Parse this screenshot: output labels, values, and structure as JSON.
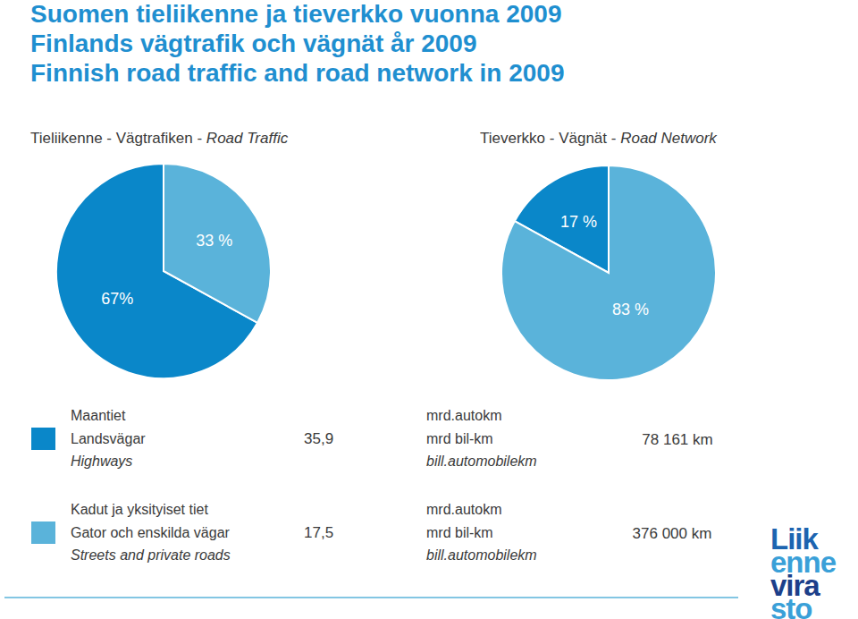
{
  "title": [
    "Suomen tieliikenne ja tieverkko vuonna 2009",
    "Finlands vägtrafik och vägnät år 2009",
    "Finnish road traffic and road network in 2009"
  ],
  "chart_data": [
    {
      "type": "pie",
      "title": "Tieliikenne - Vägtrafiken - Road Traffic",
      "values": [
        67,
        33
      ],
      "value_labels": [
        "67%",
        "33 %"
      ],
      "colors": [
        "#0a87c9",
        "#5ab3da"
      ],
      "data_labels": true
    },
    {
      "type": "pie",
      "title": "Tieverkko - Vägnät - Road Network",
      "values": [
        17,
        83
      ],
      "value_labels": [
        "17 %",
        "83 %"
      ],
      "colors": [
        "#0a87c9",
        "#5ab3da"
      ],
      "data_labels": true
    }
  ],
  "legend": {
    "rows": [
      {
        "names": [
          "Maantiet",
          "Landsvägar",
          "Highways"
        ],
        "traffic": {
          "value": 35.9,
          "label": "35,9"
        },
        "unit": [
          "mrd.autokm",
          "mrd bil-km",
          "bill.automobilekm"
        ],
        "length": {
          "value": 78161,
          "label": "78 161 km"
        }
      },
      {
        "names": [
          "Kadut ja yksityiset tiet",
          "Gator och enskilda vägar",
          "Streets and private roads"
        ],
        "traffic": {
          "value": 17.5,
          "label": "17,5"
        },
        "unit": [
          "mrd.autokm",
          "mrd bil-km",
          "bill.automobilekm"
        ],
        "length": {
          "value": 376000,
          "label": "376 000 km"
        }
      }
    ]
  },
  "logo": [
    "Liik",
    "enne",
    "vira",
    "sto"
  ]
}
